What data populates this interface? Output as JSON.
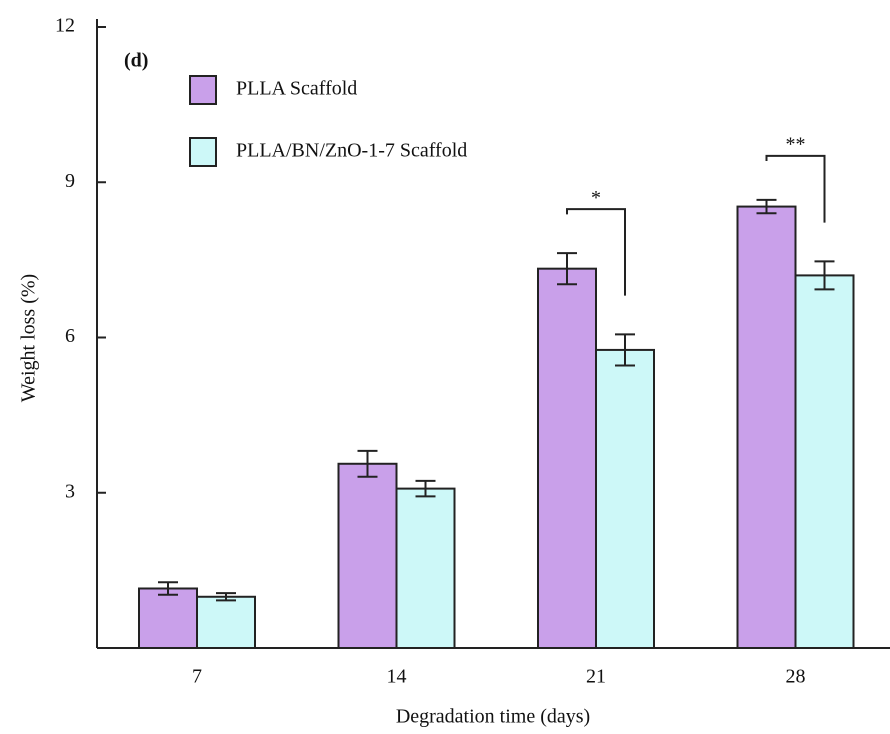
{
  "chart_data": {
    "type": "bar",
    "panel_label": "(d)",
    "x_label": "Degradation time (days)",
    "y_label": "Weight loss (%)",
    "categories": [
      "7",
      "14",
      "21",
      "28"
    ],
    "series": [
      {
        "name": "PLLA Scaffold",
        "color": "#c9a0ea",
        "values": [
          1.15,
          3.56,
          7.33,
          8.53
        ],
        "errors": [
          0.12,
          0.25,
          0.3,
          0.13
        ]
      },
      {
        "name": "PLLA/BN/ZnO-1-7 Scaffold",
        "color": "#cdf8f8",
        "values": [
          0.99,
          3.08,
          5.76,
          7.2
        ],
        "errors": [
          0.07,
          0.15,
          0.3,
          0.27
        ]
      }
    ],
    "significance": [
      null,
      null,
      "*",
      "**"
    ],
    "ylim": [
      0,
      12
    ],
    "yticks": [
      3,
      6,
      9,
      12
    ],
    "legend": "upper-left"
  }
}
